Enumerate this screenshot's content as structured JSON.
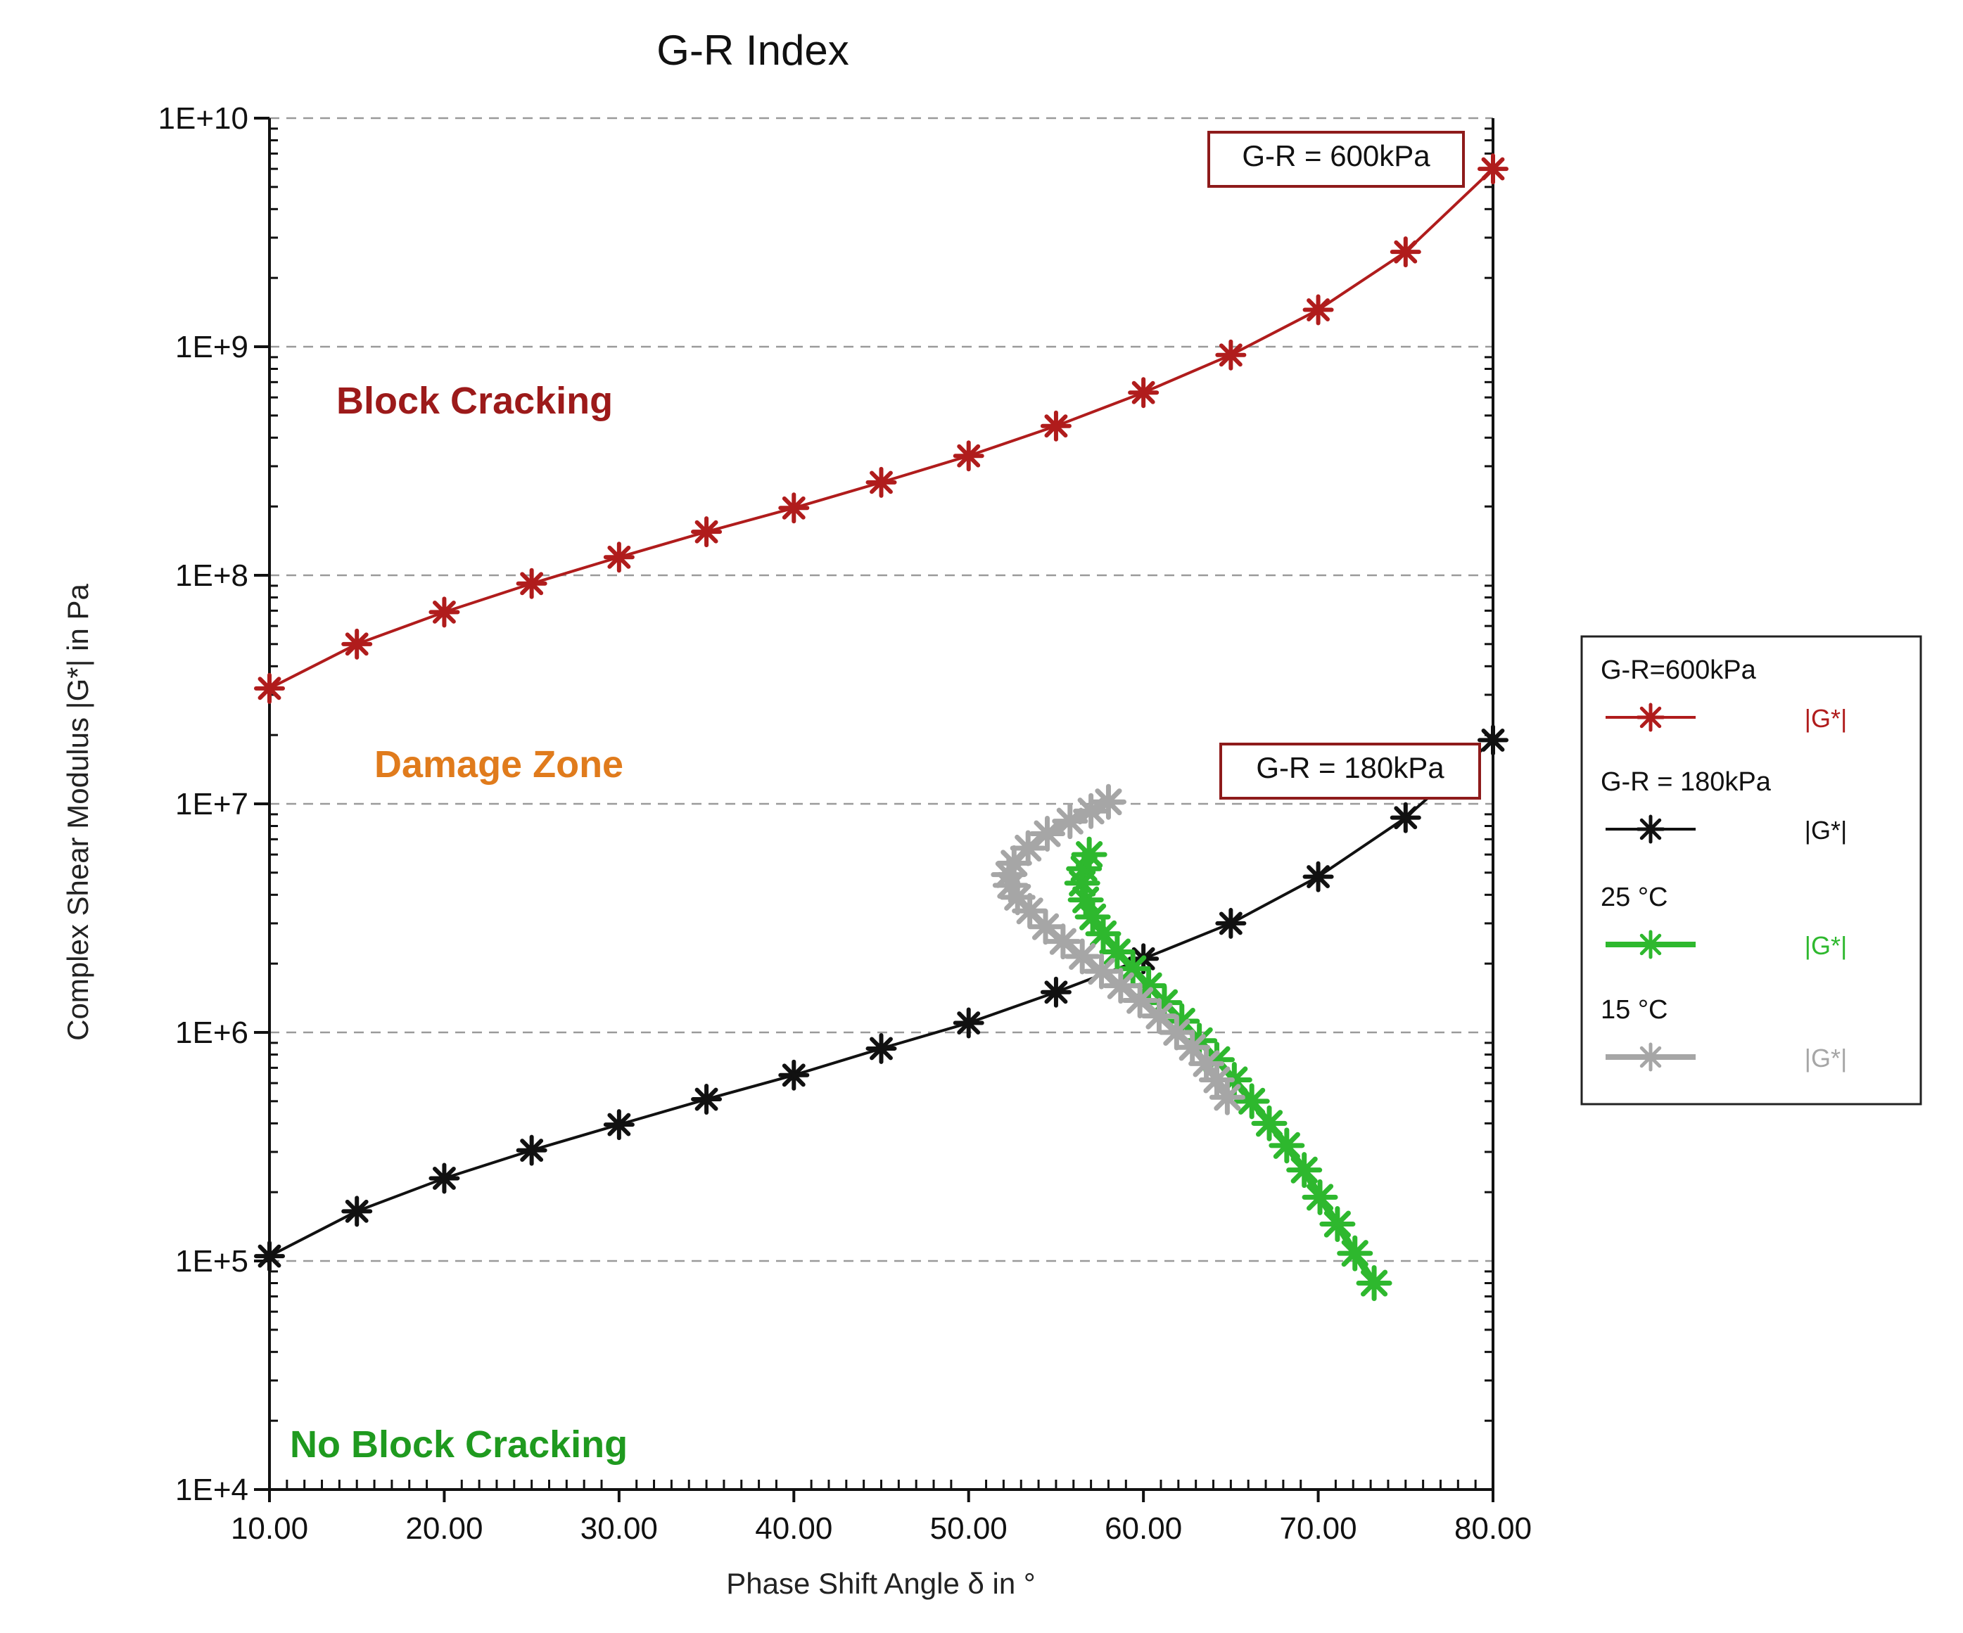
{
  "chart_data": {
    "type": "line",
    "title": "G-R Index",
    "xlabel": "Phase Shift Angle δ  in °",
    "ylabel": "Complex Shear Modulus |G*| in Pa",
    "xlim": [
      10,
      80
    ],
    "ylim": [
      10000,
      10000000000
    ],
    "yscale": "log",
    "x_ticks": [
      10,
      20,
      30,
      40,
      50,
      60,
      70,
      80
    ],
    "x_tick_labels": [
      "10.00",
      "20.00",
      "30.00",
      "40.00",
      "50.00",
      "60.00",
      "70.00",
      "80.00"
    ],
    "y_ticks": [
      10000,
      100000,
      1000000,
      10000000,
      100000000,
      1000000000,
      10000000000
    ],
    "y_tick_labels": [
      "1E+4",
      "1E+5",
      "1E+6",
      "1E+7",
      "1E+8",
      "1E+9",
      "1E+10"
    ],
    "grid": "horizontal dashed",
    "series": [
      {
        "name": "G-R=600kPa",
        "legend_value": "|G*|",
        "color": "#b01c1c",
        "x": [
          10,
          15,
          20,
          25,
          30,
          35,
          40,
          45,
          50,
          55,
          60,
          65,
          70,
          75,
          80
        ],
        "y": [
          32000000,
          50000000,
          69000000,
          92000000,
          120000000,
          155000000,
          197000000,
          255000000,
          333000000,
          450000000,
          630000000,
          920000000,
          1450000000,
          2600000000,
          6000000000
        ]
      },
      {
        "name": "G-R = 180kPa",
        "legend_value": "|G*|",
        "color": "#111111",
        "x": [
          10,
          15,
          20,
          25,
          30,
          35,
          40,
          45,
          50,
          55,
          60,
          65,
          70,
          75,
          80
        ],
        "y": [
          105000,
          165000,
          230000,
          305000,
          395000,
          510000,
          650000,
          850000,
          1100000,
          1500000,
          2100000,
          3000000,
          4800000,
          8700000,
          19000000
        ]
      },
      {
        "name": "25 °C",
        "legend_value": "|G*|",
        "color": "#2eb82e",
        "x": [
          56.9,
          56.6,
          56.5,
          56.7,
          57.1,
          57.7,
          58.5,
          59.4,
          60.3,
          61.2,
          62.2,
          63.2,
          64.2,
          65.2,
          66.2,
          67.2,
          68.2,
          69.2,
          70.1,
          71.1,
          72.1,
          73.2
        ],
        "y": [
          6000000,
          5200000,
          4500000,
          3800000,
          3200000,
          2700000,
          2250000,
          1900000,
          1600000,
          1350000,
          1120000,
          920000,
          760000,
          620000,
          500000,
          400000,
          320000,
          250000,
          190000,
          145000,
          108000,
          80000
        ]
      },
      {
        "name": "15 °C",
        "legend_value": "|G*|",
        "color": "#a6a6a6",
        "x": [
          58.0,
          57.0,
          55.8,
          54.5,
          53.4,
          52.6,
          52.3,
          52.4,
          52.8,
          53.5,
          54.4,
          55.4,
          56.5,
          57.6,
          58.7,
          59.8,
          60.9,
          61.9,
          62.8,
          63.6,
          64.2,
          64.8
        ],
        "y": [
          10200000,
          9300000,
          8400000,
          7400000,
          6400000,
          5500000,
          4900000,
          4400000,
          3900000,
          3400000,
          2900000,
          2500000,
          2150000,
          1850000,
          1600000,
          1380000,
          1180000,
          1000000,
          860000,
          730000,
          620000,
          520000
        ]
      }
    ],
    "zones": [
      {
        "label": "Block Cracking",
        "color": "#9c1a1a"
      },
      {
        "label": "Damage Zone",
        "color": "#e07b1c"
      },
      {
        "label": "No Block Cracking",
        "color": "#1f9a1f"
      }
    ],
    "annotations": [
      {
        "text": "G-R = 600kPa",
        "color": "#8e1b1b"
      },
      {
        "text": "G-R = 180kPa",
        "color": "#8e1b1b"
      }
    ],
    "legend_position": "right"
  }
}
